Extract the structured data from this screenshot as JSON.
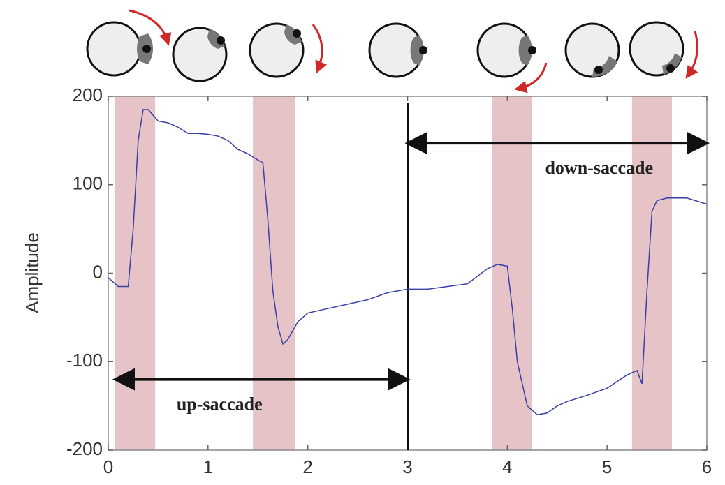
{
  "chart_data": {
    "type": "line",
    "ylabel": "Amplitude",
    "x": [
      0,
      0.1,
      0.2,
      0.25,
      0.3,
      0.35,
      0.4,
      0.5,
      0.6,
      0.7,
      0.8,
      0.9,
      1.0,
      1.1,
      1.2,
      1.3,
      1.4,
      1.5,
      1.55,
      1.6,
      1.65,
      1.7,
      1.75,
      1.8,
      1.9,
      2.0,
      2.2,
      2.4,
      2.6,
      2.8,
      3.0,
      3.2,
      3.4,
      3.6,
      3.8,
      3.9,
      4.0,
      4.05,
      4.1,
      4.2,
      4.3,
      4.4,
      4.5,
      4.6,
      4.8,
      5.0,
      5.2,
      5.3,
      5.35,
      5.4,
      5.45,
      5.5,
      5.6,
      5.8,
      6.0
    ],
    "values": [
      -5,
      -15,
      -15,
      50,
      150,
      185,
      185,
      172,
      170,
      165,
      158,
      158,
      157,
      155,
      150,
      140,
      135,
      128,
      125,
      60,
      -20,
      -60,
      -80,
      -75,
      -55,
      -45,
      -40,
      -35,
      -30,
      -22,
      -18,
      -18,
      -15,
      -12,
      5,
      10,
      8,
      -40,
      -100,
      -150,
      -160,
      -158,
      -150,
      -145,
      -138,
      -130,
      -115,
      -110,
      -125,
      -20,
      70,
      82,
      85,
      85,
      78
    ],
    "color": "#3a3fa8",
    "xlim": [
      0,
      6
    ],
    "ylim": [
      -200,
      200
    ],
    "xticks": [
      0,
      1,
      2,
      3,
      4,
      5,
      6
    ],
    "yticks": [
      -200,
      -100,
      0,
      100,
      200
    ],
    "spans": [
      [
        0.07,
        0.47
      ],
      [
        1.45,
        1.87
      ],
      [
        3.85,
        4.25
      ],
      [
        5.25,
        5.65
      ]
    ],
    "span_color": "#e6c3c7",
    "vline": 3,
    "arrows": [
      {
        "label": "down-saccade",
        "x": [
          3,
          6
        ],
        "y": 147
      },
      {
        "label": "up-saccade",
        "x": [
          0.07,
          3
        ],
        "y": -120
      }
    ]
  }
}
